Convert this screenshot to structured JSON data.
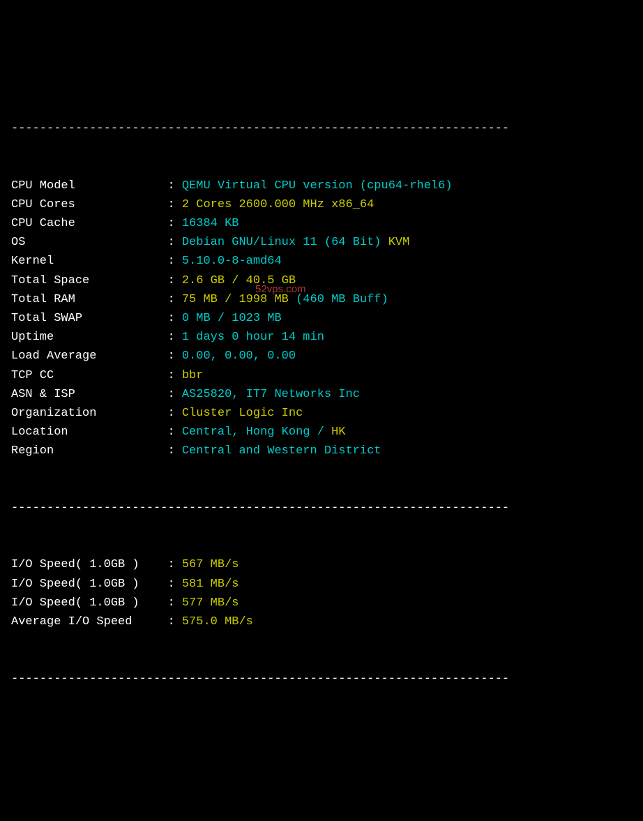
{
  "divider": "----------------------------------------------------------------------",
  "colors": {
    "background": "#000000",
    "text": "#ffffff",
    "cyan": "#00cccc",
    "yellow": "#cccc00",
    "green": "#00cc00",
    "watermark": "#cc4444"
  },
  "watermark": "52vps.com",
  "rows": [
    {
      "label": "CPU Model            ",
      "colon": " : ",
      "parts": [
        {
          "c": "cyan",
          "t": "QEMU Virtual CPU version (cpu64-rhel6)"
        }
      ]
    },
    {
      "label": "CPU Cores            ",
      "colon": " : ",
      "parts": [
        {
          "c": "yellow",
          "t": "2 Cores 2600.000 MHz x86_64"
        }
      ]
    },
    {
      "label": "CPU Cache            ",
      "colon": " : ",
      "parts": [
        {
          "c": "cyan",
          "t": "16384 KB"
        }
      ]
    },
    {
      "label": "OS                   ",
      "colon": " : ",
      "parts": [
        {
          "c": "cyan",
          "t": "Debian GNU/Linux 11 (64 Bit) "
        },
        {
          "c": "yellow",
          "t": "KVM"
        }
      ]
    },
    {
      "label": "Kernel               ",
      "colon": " : ",
      "parts": [
        {
          "c": "cyan",
          "t": "5.10.0-8-amd64"
        }
      ]
    },
    {
      "label": "Total Space          ",
      "colon": " : ",
      "parts": [
        {
          "c": "yellow",
          "t": "2.6 GB / 40.5 GB"
        }
      ]
    },
    {
      "label": "Total RAM            ",
      "colon": " : ",
      "parts": [
        {
          "c": "yellow",
          "t": "75 MB / 1998 MB "
        },
        {
          "c": "cyan",
          "t": "(460 MB Buff)"
        }
      ]
    },
    {
      "label": "Total SWAP           ",
      "colon": " : ",
      "parts": [
        {
          "c": "cyan",
          "t": "0 MB / 1023 MB"
        }
      ]
    },
    {
      "label": "Uptime               ",
      "colon": " : ",
      "parts": [
        {
          "c": "cyan",
          "t": "1 days 0 hour 14 min"
        }
      ]
    },
    {
      "label": "Load Average         ",
      "colon": " : ",
      "parts": [
        {
          "c": "cyan",
          "t": "0.00, 0.00, 0.00"
        }
      ]
    },
    {
      "label": "TCP CC               ",
      "colon": " : ",
      "parts": [
        {
          "c": "yellow",
          "t": "bbr"
        }
      ]
    },
    {
      "label": "ASN & ISP            ",
      "colon": " : ",
      "parts": [
        {
          "c": "cyan",
          "t": "AS25820, IT7 Networks Inc"
        }
      ]
    },
    {
      "label": "Organization         ",
      "colon": " : ",
      "parts": [
        {
          "c": "yellow",
          "t": "Cluster Logic Inc"
        }
      ]
    },
    {
      "label": "Location             ",
      "colon": " : ",
      "parts": [
        {
          "c": "cyan",
          "t": "Central, Hong Kong / "
        },
        {
          "c": "yellow",
          "t": "HK"
        }
      ]
    },
    {
      "label": "Region               ",
      "colon": " : ",
      "parts": [
        {
          "c": "cyan",
          "t": "Central and Western District"
        }
      ]
    }
  ],
  "io_rows": [
    {
      "label": "I/O Speed( 1.0GB )   ",
      "colon": " : ",
      "parts": [
        {
          "c": "yellow",
          "t": "567 MB/s"
        }
      ]
    },
    {
      "label": "I/O Speed( 1.0GB )   ",
      "colon": " : ",
      "parts": [
        {
          "c": "yellow",
          "t": "581 MB/s"
        }
      ]
    },
    {
      "label": "I/O Speed( 1.0GB )   ",
      "colon": " : ",
      "parts": [
        {
          "c": "yellow",
          "t": "577 MB/s"
        }
      ]
    },
    {
      "label": "Average I/O Speed    ",
      "colon": " : ",
      "parts": [
        {
          "c": "yellow",
          "t": "575.0 MB/s"
        }
      ]
    }
  ]
}
